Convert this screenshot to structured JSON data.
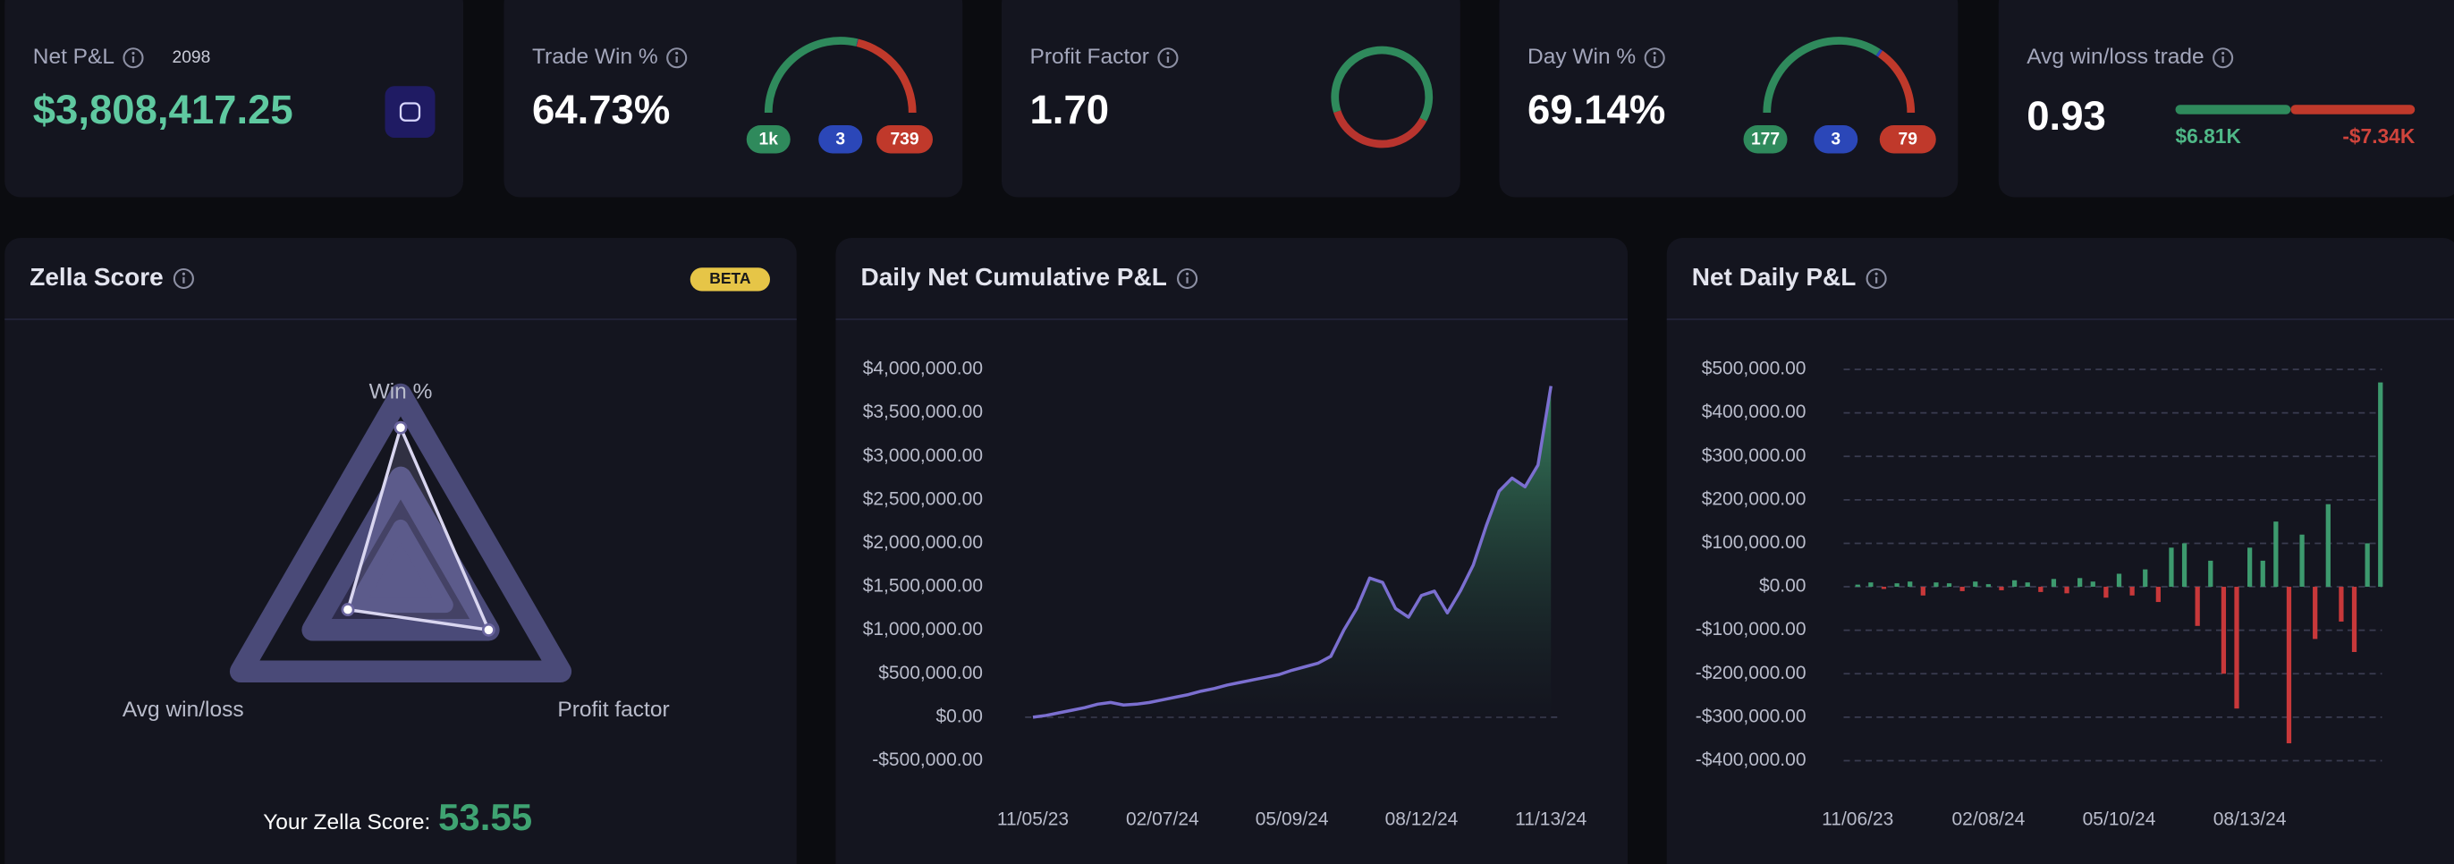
{
  "cards": [
    {
      "label": "Net P&L",
      "count": 2098,
      "value": "$3,808,417.25"
    },
    {
      "label": "Trade Win %",
      "value": "64.73%",
      "gauge": [
        {
          "value": 1000,
          "label": "1k"
        },
        3,
        739
      ]
    },
    {
      "label": "Profit Factor",
      "value": {
        "value": 1.7,
        "label": "1.70"
      }
    },
    {
      "label": "Day Win %",
      "value": "69.14%",
      "gauge": [
        177,
        3,
        79
      ]
    },
    {
      "label": "Avg win/loss trade",
      "value": 0.93,
      "bar": [
        {
          "value": 6810,
          "label": "$6.81K"
        },
        {
          "value": -7340,
          "label": "-$7.34K"
        }
      ]
    }
  ],
  "zella": {
    "title": "Zella Score",
    "badge": "BETA",
    "axes": [
      "Win %",
      "Profit factor",
      "Avg win/loss"
    ],
    "values": [
      82,
      55,
      33
    ],
    "rlim": [
      0,
      100
    ],
    "score_label": "Your Zella Score:",
    "score": 53.55
  },
  "chart_data": [
    {
      "type": "line",
      "title": "Daily Net Cumulative P&L",
      "color": "#7b6fd0",
      "fill": "#2f7a5a",
      "categories": [
        "11/05/23",
        null,
        null,
        null,
        null,
        null,
        null,
        null,
        null,
        null,
        "02/07/24",
        null,
        null,
        null,
        null,
        null,
        null,
        null,
        null,
        null,
        "05/09/24",
        null,
        null,
        null,
        null,
        null,
        null,
        null,
        null,
        null,
        "08/12/24",
        null,
        null,
        null,
        null,
        null,
        null,
        null,
        null,
        null,
        "11/13/24"
      ],
      "values": [
        0,
        20000,
        50000,
        80000,
        110000,
        150000,
        170000,
        140000,
        150000,
        170000,
        200000,
        230000,
        260000,
        300000,
        330000,
        370000,
        400000,
        430000,
        460000,
        490000,
        540000,
        580000,
        620000,
        700000,
        1000000,
        1250000,
        1600000,
        1550000,
        1250000,
        1150000,
        1400000,
        1450000,
        1200000,
        1450000,
        1750000,
        2200000,
        2600000,
        2750000,
        2650000,
        2900000,
        3808417.25
      ],
      "ylim": [
        -500000,
        4000000
      ],
      "yticks": [
        {
          "value": -500000,
          "label": "-$500,000.00"
        },
        {
          "value": 0,
          "label": "$0.00"
        },
        {
          "value": 500000,
          "label": "$500,000.00"
        },
        {
          "value": 1000000,
          "label": "$1,000,000.00"
        },
        {
          "value": 1500000,
          "label": "$1,500,000.00"
        },
        {
          "value": 2000000,
          "label": "$2,000,000.00"
        },
        {
          "value": 2500000,
          "label": "$2,500,000.00"
        },
        {
          "value": 3000000,
          "label": "$3,000,000.00"
        },
        {
          "value": 3500000,
          "label": "$3,500,000.00"
        },
        {
          "value": 4000000,
          "label": "$4,000,000.00"
        }
      ],
      "grid": false
    },
    {
      "type": "bar",
      "title": "Net Daily P&L",
      "colors": {
        "positive": "#3d9a6e",
        "negative": "#c8383a"
      },
      "categories": [
        "11/06/23",
        null,
        null,
        null,
        null,
        null,
        null,
        null,
        null,
        null,
        "02/08/24",
        null,
        null,
        null,
        null,
        null,
        null,
        null,
        null,
        null,
        "05/10/24",
        null,
        null,
        null,
        null,
        null,
        null,
        null,
        null,
        null,
        "08/13/24",
        null,
        null,
        null,
        null,
        null,
        null,
        null,
        null,
        null,
        null
      ],
      "values": [
        5000,
        10000,
        -5000,
        8000,
        12000,
        -20000,
        10000,
        8000,
        -10000,
        12000,
        6000,
        -8000,
        15000,
        10000,
        -12000,
        18000,
        -15000,
        20000,
        12000,
        -25000,
        30000,
        -20000,
        40000,
        -35000,
        90000,
        100000,
        -90000,
        60000,
        -200000,
        -280000,
        90000,
        60000,
        150000,
        -360000,
        120000,
        -120000,
        190000,
        -80000,
        -150000,
        100000,
        470000
      ],
      "ylim": [
        -400000,
        500000
      ],
      "yticks": [
        {
          "value": -400000,
          "label": "-$400,000.00"
        },
        {
          "value": -300000,
          "label": "-$300,000.00"
        },
        {
          "value": -200000,
          "label": "-$200,000.00"
        },
        {
          "value": -100000,
          "label": "-$100,000.00"
        },
        {
          "value": 0,
          "label": "$0.00"
        },
        {
          "value": 100000,
          "label": "$100,000.00"
        },
        {
          "value": 200000,
          "label": "$200,000.00"
        },
        {
          "value": 300000,
          "label": "$300,000.00"
        },
        {
          "value": 400000,
          "label": "$400,000.00"
        },
        {
          "value": 500000,
          "label": "$500,000.00"
        }
      ],
      "grid": true
    }
  ]
}
